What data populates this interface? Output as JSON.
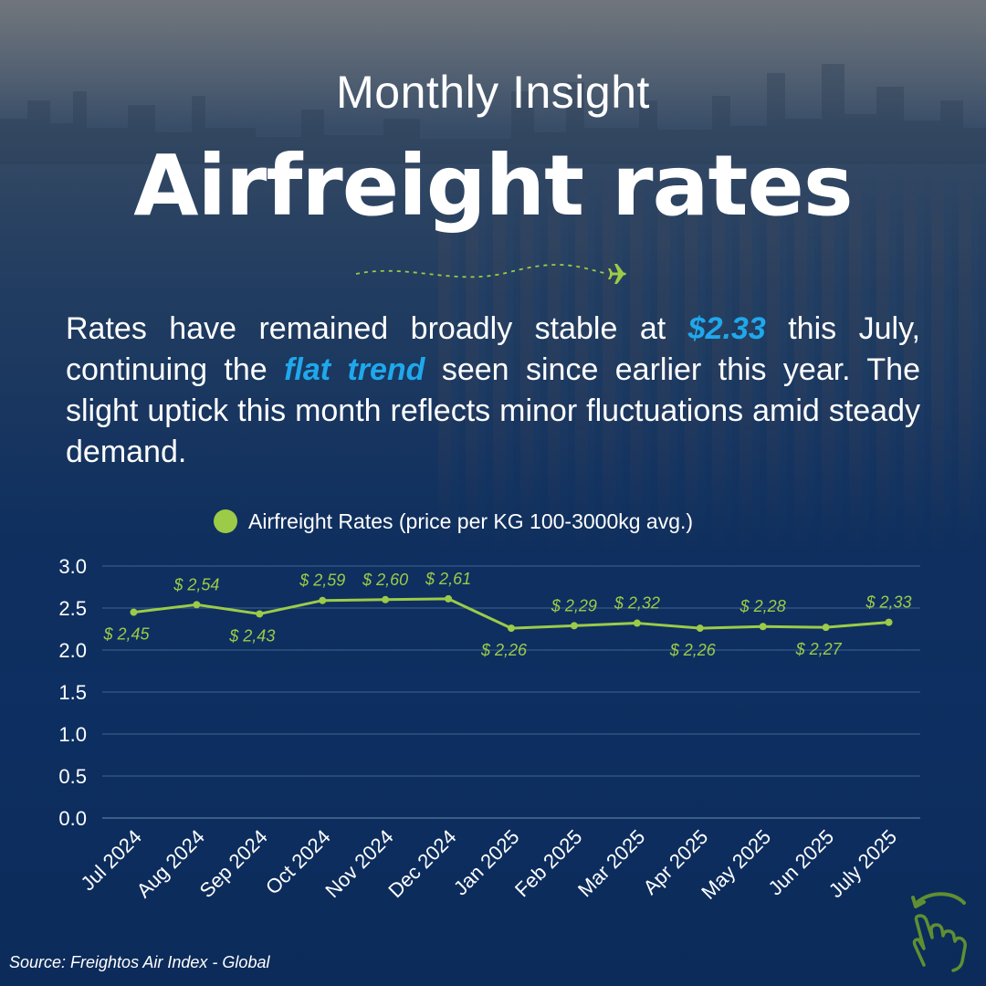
{
  "header": {
    "kicker": "Monthly Insight",
    "title": "Airfreight rates"
  },
  "summary": {
    "part1": "Rates have remained broadly stable at ",
    "highlight_value": "$2.33",
    "part2": " this July, continuing the ",
    "highlight_trend": "flat trend",
    "part3": " seen since earlier this year. The slight uptick this month reflects minor fluctuations amid steady demand."
  },
  "colors": {
    "line": "#9ccb48",
    "highlight": "#1fa8ec",
    "grid": "#3f6690",
    "text": "#ffffff"
  },
  "icons": {
    "flight_path": "airplane-dashed-path-icon",
    "swipe": "swipe-hand-icon"
  },
  "chart_data": {
    "type": "line",
    "categories": [
      "Jul 2024",
      "Aug 2024",
      "Sep 2024",
      "Oct 2024",
      "Nov 2024",
      "Dec 2024",
      "Jan 2025",
      "Feb 2025",
      "Mar 2025",
      "Apr 2025",
      "May 2025",
      "Jun 2025",
      "July 2025"
    ],
    "series": [
      {
        "name": "Airfreight Rates (price per KG 100-3000kg avg.)",
        "values": [
          2.45,
          2.54,
          2.43,
          2.59,
          2.6,
          2.61,
          2.26,
          2.29,
          2.32,
          2.26,
          2.28,
          2.27,
          2.33
        ],
        "labels": [
          "$ 2,45",
          "$ 2,54",
          "$ 2,43",
          "$ 2,59",
          "$ 2,60",
          "$ 2,61",
          "$ 2,26",
          "$ 2,29",
          "$ 2,32",
          "$ 2,26",
          "$ 2,28",
          "$ 2,27",
          "$ 2,33"
        ],
        "label_position": [
          "below",
          "above",
          "below",
          "above",
          "above",
          "above",
          "below",
          "above",
          "above",
          "below",
          "above",
          "below",
          "above"
        ]
      }
    ],
    "yticks": [
      "0.0",
      "0.5",
      "1.0",
      "1.5",
      "2.0",
      "2.5",
      "3.0"
    ],
    "ylim": [
      0,
      3
    ],
    "grid": true,
    "legend": "top-center"
  },
  "footer": {
    "source": "Source: Freightos Air Index - Global"
  }
}
